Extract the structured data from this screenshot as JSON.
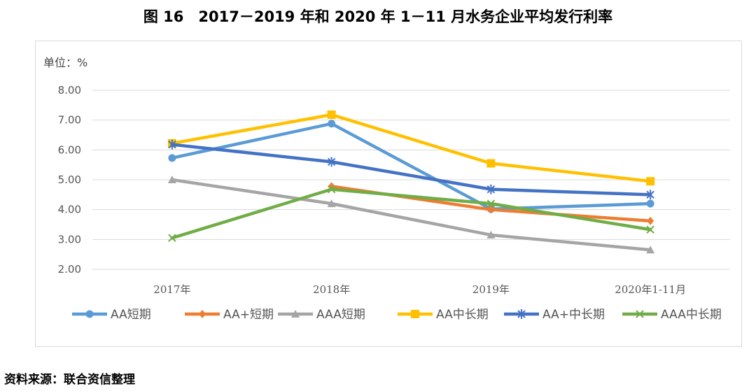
{
  "title": "图 16　2017－2019 年和 2020 年 1－11 月水务企业平均发行利率",
  "unit_label": "单位：%",
  "source": "资料来源：联合资信整理",
  "chart_data": {
    "type": "line",
    "categories": [
      "2017年",
      "2018年",
      "2019年",
      "2020年1-11月"
    ],
    "yticks": [
      "8.00",
      "7.00",
      "6.00",
      "5.00",
      "4.00",
      "3.00",
      "2.00"
    ],
    "ylim": [
      2,
      8
    ],
    "grid": true,
    "legend_position": "bottom",
    "series": [
      {
        "name": "AA短期",
        "color": "#5B9BD5",
        "marker": "circle",
        "values": [
          5.73,
          6.88,
          4.02,
          4.2
        ]
      },
      {
        "name": "AA+短期",
        "color": "#ED7D31",
        "marker": "diamond",
        "values": [
          null,
          4.78,
          4.0,
          3.62
        ]
      },
      {
        "name": "AAA短期",
        "color": "#A5A5A5",
        "marker": "triangle",
        "values": [
          5.0,
          4.2,
          3.15,
          2.65
        ]
      },
      {
        "name": "AA中长期",
        "color": "#FFC000",
        "marker": "square",
        "values": [
          6.22,
          7.18,
          5.55,
          4.95
        ]
      },
      {
        "name": "AA+中长期",
        "color": "#4472C4",
        "marker": "asterisk",
        "values": [
          6.18,
          5.6,
          4.68,
          4.5
        ]
      },
      {
        "name": "AAA中长期",
        "color": "#70AD47",
        "marker": "x",
        "values": [
          3.05,
          4.68,
          4.2,
          3.33
        ]
      }
    ]
  }
}
